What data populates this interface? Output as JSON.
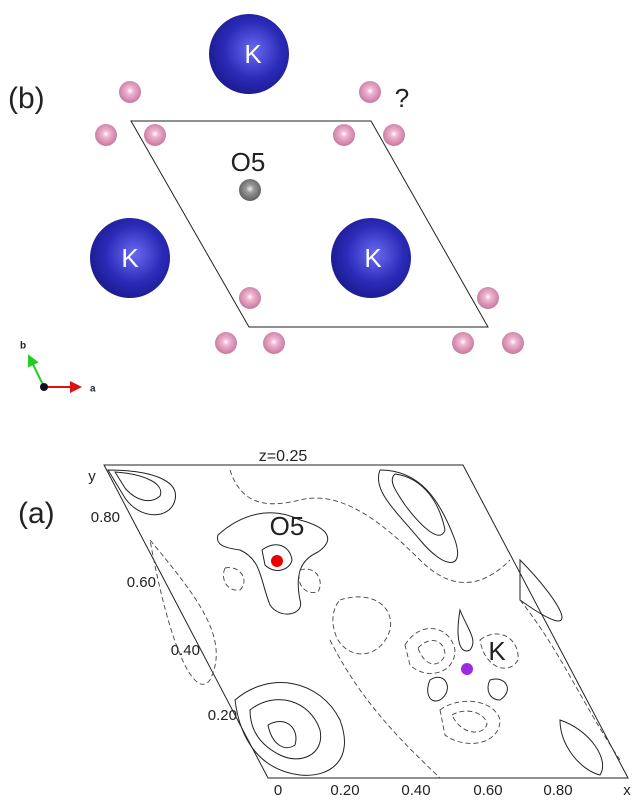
{
  "panel_b": {
    "label": "(b)",
    "atoms": [
      "K",
      "K",
      "K"
    ],
    "o5": "O5",
    "question": "?",
    "axis_b": "b",
    "axis_a": "a"
  },
  "panel_a": {
    "label": "(a)",
    "title": "z=0.25",
    "y_axis": "y",
    "x_axis": "x",
    "y_ticks": [
      "0.80",
      "0.60",
      "0.40",
      "0.20"
    ],
    "x_ticks": [
      "0",
      "0.20",
      "0.40",
      "0.60",
      "0.80"
    ],
    "o5": "O5",
    "k": "K"
  }
}
